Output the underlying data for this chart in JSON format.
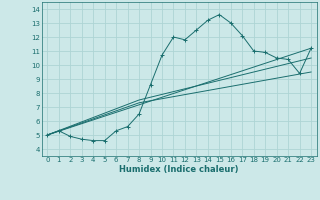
{
  "xlabel": "Humidex (Indice chaleur)",
  "background_color": "#cce8e8",
  "grid_color": "#aed4d4",
  "line_color": "#1a6e6e",
  "xlim": [
    -0.5,
    23.5
  ],
  "ylim": [
    3.5,
    14.5
  ],
  "xticks": [
    0,
    1,
    2,
    3,
    4,
    5,
    6,
    7,
    8,
    9,
    10,
    11,
    12,
    13,
    14,
    15,
    16,
    17,
    18,
    19,
    20,
    21,
    22,
    23
  ],
  "yticks": [
    4,
    5,
    6,
    7,
    8,
    9,
    10,
    11,
    12,
    13,
    14
  ],
  "line1_x": [
    0,
    1,
    2,
    3,
    4,
    5,
    6,
    7,
    8,
    9,
    10,
    11,
    12,
    13,
    14,
    15,
    16,
    17,
    18,
    19,
    20,
    21,
    22,
    23
  ],
  "line1_y": [
    5.0,
    5.3,
    4.9,
    4.7,
    4.6,
    4.6,
    5.3,
    5.6,
    6.5,
    8.6,
    10.7,
    12.0,
    11.8,
    12.5,
    13.2,
    13.6,
    13.0,
    12.1,
    11.0,
    10.9,
    10.5,
    10.4,
    9.4,
    11.2
  ],
  "line2_x": [
    0,
    23
  ],
  "line2_y": [
    5.0,
    11.2
  ],
  "line3_x": [
    0,
    8,
    23
  ],
  "line3_y": [
    5.0,
    7.5,
    10.5
  ],
  "line4_x": [
    0,
    8,
    23
  ],
  "line4_y": [
    5.0,
    7.3,
    9.5
  ]
}
